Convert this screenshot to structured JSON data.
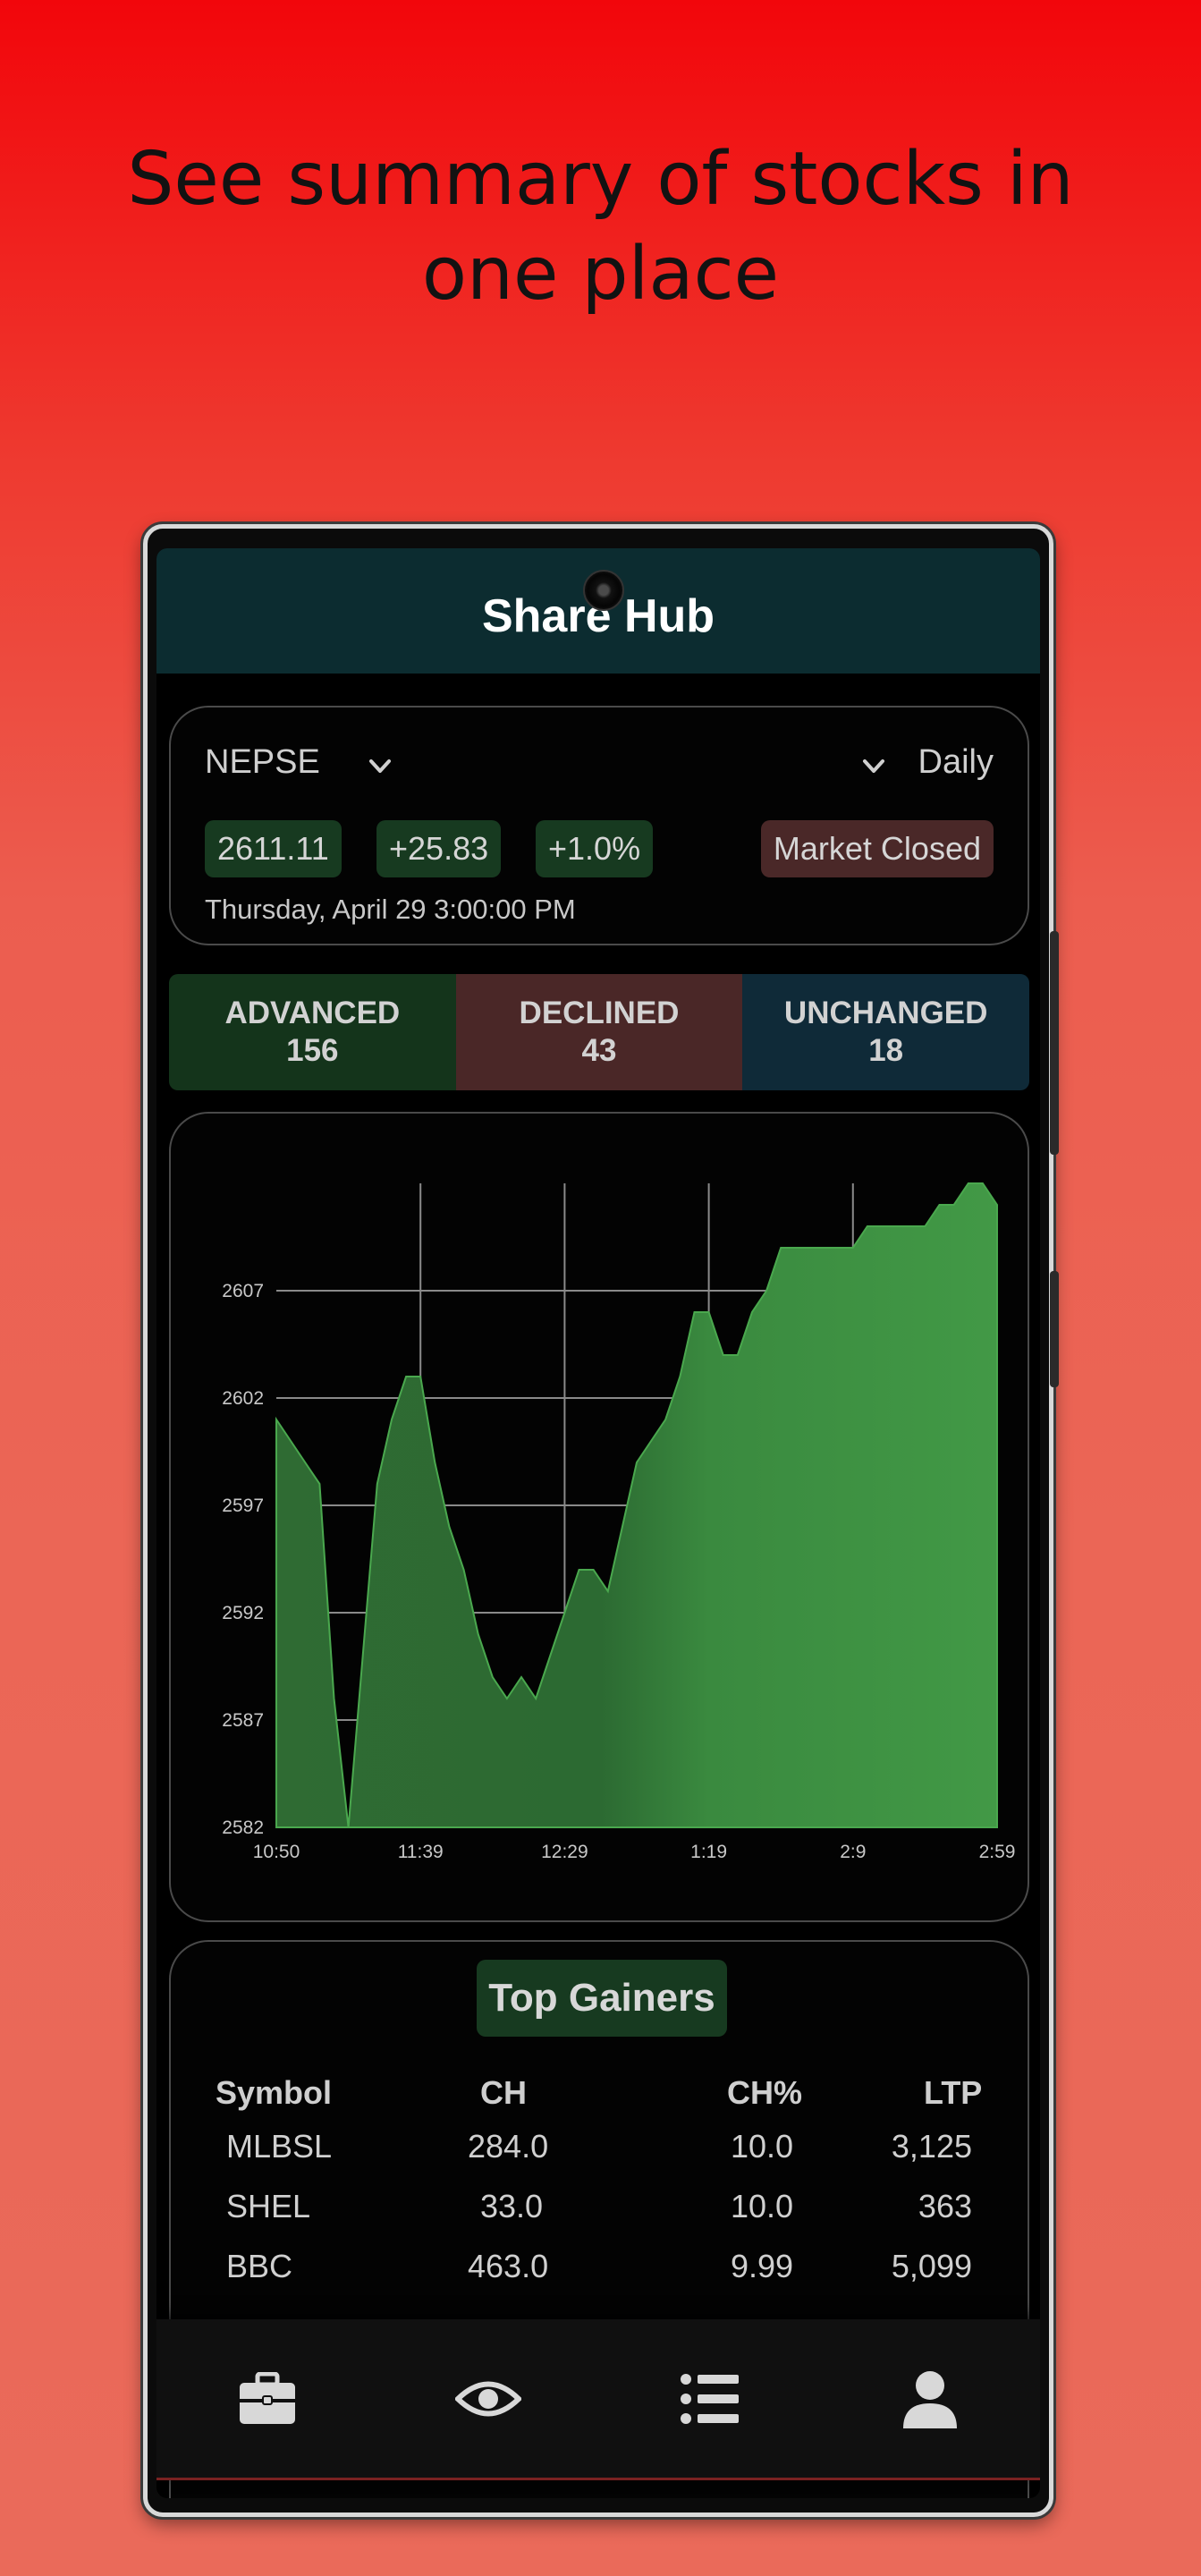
{
  "headline": {
    "line1": "See summary of stocks in",
    "line2": "one place"
  },
  "app": {
    "title": "Share Hub"
  },
  "index": {
    "name": "NEPSE",
    "period": "Daily",
    "value": "2611.11",
    "change": "+25.83",
    "change_pct": "+1.0%",
    "market_status": "Market Closed",
    "datetime": "Thursday, April 29 3:00:00 PM"
  },
  "breadth": {
    "advanced_label": "ADVANCED",
    "advanced_value": "156",
    "declined_label": "DECLINED",
    "declined_value": "43",
    "unchanged_label": "UNCHANGED",
    "unchanged_value": "18"
  },
  "colors": {
    "positive": "#3f9444",
    "negative": "#4a2727",
    "neutral": "#0f2a38",
    "appbar": "#0c2c30"
  },
  "chart_data": {
    "type": "area",
    "title": "",
    "xlabel": "",
    "ylabel": "",
    "x_ticks": [
      "10:50",
      "11:39",
      "12:29",
      "1:19",
      "2:9",
      "2:59"
    ],
    "y_ticks": [
      2582,
      2587,
      2592,
      2597,
      2602,
      2607
    ],
    "ylim": [
      2582,
      2612
    ],
    "grid": true,
    "x": [
      "10:50",
      "10:55",
      "11:00",
      "11:05",
      "11:10",
      "11:15",
      "11:20",
      "11:25",
      "11:30",
      "11:35",
      "11:39",
      "11:45",
      "11:50",
      "11:55",
      "12:00",
      "12:05",
      "12:10",
      "12:15",
      "12:20",
      "12:25",
      "12:29",
      "12:35",
      "12:40",
      "12:45",
      "12:50",
      "12:55",
      "13:00",
      "13:05",
      "13:10",
      "13:15",
      "13:19",
      "13:25",
      "13:30",
      "13:35",
      "13:40",
      "13:45",
      "13:50",
      "13:55",
      "14:00",
      "14:05",
      "14:09",
      "14:15",
      "14:20",
      "14:25",
      "14:30",
      "14:35",
      "14:40",
      "14:45",
      "14:50",
      "14:55",
      "14:59"
    ],
    "values": [
      2601,
      2600,
      2599,
      2598,
      2588,
      2582,
      2590,
      2598,
      2601,
      2603,
      2603,
      2599,
      2596,
      2594,
      2591,
      2589,
      2588,
      2589,
      2588,
      2590,
      2592,
      2594,
      2594,
      2593,
      2596,
      2599,
      2600,
      2601,
      2603,
      2606,
      2606,
      2604,
      2604,
      2606,
      2607,
      2609,
      2609,
      2609,
      2609,
      2609,
      2609,
      2610,
      2610,
      2610,
      2610,
      2610,
      2611,
      2611,
      2612,
      2612,
      2611
    ]
  },
  "gainers": {
    "title": "Top Gainers",
    "headers": [
      "Symbol",
      "CH",
      "CH%",
      "LTP"
    ],
    "rows": [
      [
        "MLBSL",
        "284.0",
        "10.0",
        "3,125"
      ],
      [
        "SHEL",
        "33.0",
        "10.0",
        "363"
      ],
      [
        "BBC",
        "463.0",
        "9.99",
        "5,099"
      ]
    ]
  },
  "nav": {
    "items": [
      {
        "icon": "briefcase-icon"
      },
      {
        "icon": "eye-icon"
      },
      {
        "icon": "list-icon"
      },
      {
        "icon": "user-icon"
      }
    ]
  }
}
